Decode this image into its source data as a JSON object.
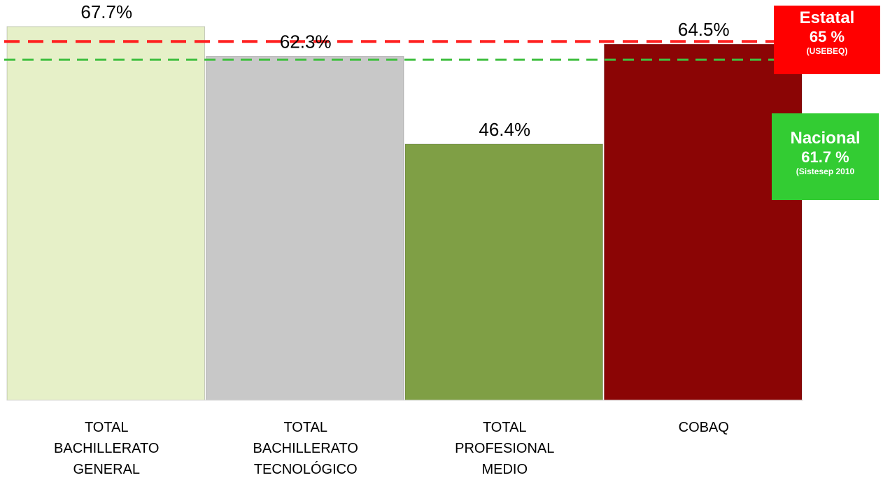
{
  "chart_data": {
    "type": "bar",
    "categories": [
      [
        "TOTAL",
        "BACHILLERATO",
        "GENERAL"
      ],
      [
        "TOTAL",
        "BACHILLERATO",
        "TECNOLÓGICO"
      ],
      [
        "TOTAL",
        "PROFESIONAL",
        "MEDIO"
      ],
      [
        "COBAQ"
      ]
    ],
    "values": [
      67.7,
      62.3,
      46.4,
      64.5
    ],
    "data_labels": [
      "67.7%",
      "62.3%",
      "46.4%",
      "64.5%"
    ],
    "bar_colors": [
      "#e6f0c8",
      "#c8c8c8",
      "#7f9f45",
      "#8b0505"
    ],
    "ylim": [
      0,
      72
    ],
    "grid": false,
    "reference_lines": [
      {
        "name": "Estatal",
        "value": 65,
        "value_label": "65 %",
        "source": "(USEBEQ)",
        "color": "#ff2020",
        "box_color": "#ff0000"
      },
      {
        "name": "Nacional",
        "value": 61.7,
        "value_label": "61.7 %",
        "source": "(Sistesep 2010",
        "color": "#40bf40",
        "box_color": "#33cc33"
      }
    ]
  }
}
